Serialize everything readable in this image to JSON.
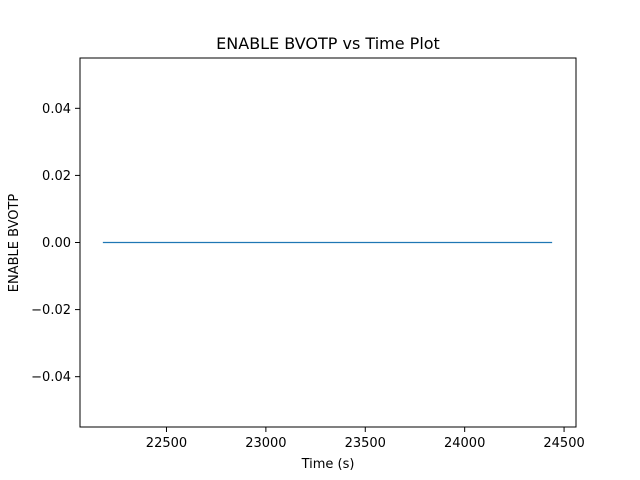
{
  "chart_data": {
    "type": "line",
    "title": "ENABLE BVOTP vs Time Plot",
    "xlabel": "Time (s)",
    "ylabel": "ENABLE BVOTP",
    "xlim": [
      22065,
      24560
    ],
    "ylim": [
      -0.055,
      0.055
    ],
    "xticks": [
      22500,
      23000,
      23500,
      24000,
      24500
    ],
    "yticks": [
      -0.04,
      -0.02,
      0.0,
      0.02,
      0.04
    ],
    "xtick_labels": [
      "22500",
      "23000",
      "23500",
      "24000",
      "24500"
    ],
    "ytick_labels": [
      "−0.04",
      "−0.02",
      "0.00",
      "0.02",
      "0.04"
    ],
    "grid": false,
    "series": [
      {
        "color": "#1f77b4",
        "x": [
          22180,
          24440
        ],
        "y": [
          0.0,
          0.0
        ]
      }
    ]
  }
}
